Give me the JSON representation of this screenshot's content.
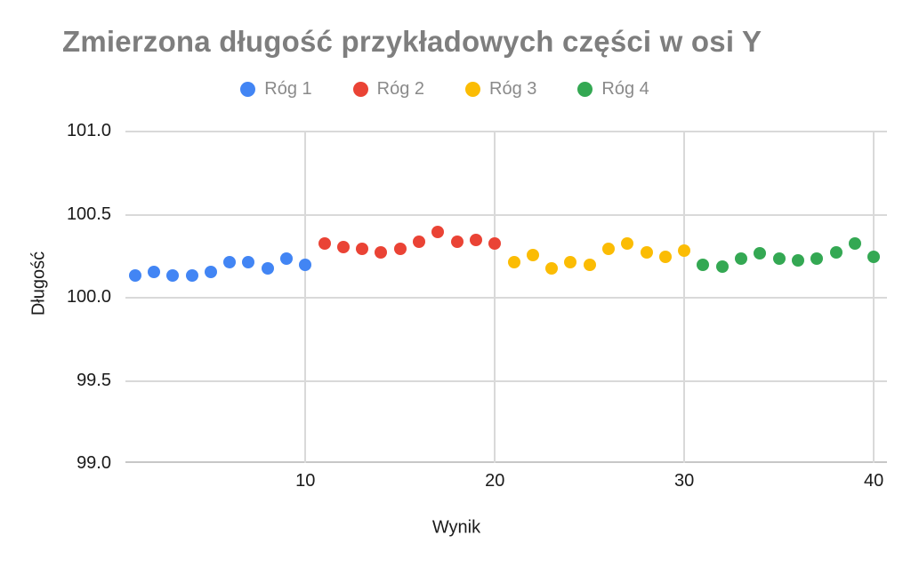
{
  "colors": {
    "background": "#ffffff",
    "title_text": "#7e7e7e",
    "legend_text": "#8a8a8a",
    "axis_text": "#1a1a1a",
    "gridline": "#d9d9d9",
    "baseline": "#c7c7c7"
  },
  "chart_data": {
    "type": "scatter",
    "title": "Zmierzona długość przykładowych części w osi Y",
    "xlabel": "Wynik",
    "ylabel": "Długość",
    "xlim": [
      0.5,
      40.7
    ],
    "ylim": [
      99.0,
      101.0
    ],
    "x_ticks": [
      10,
      20,
      30,
      40
    ],
    "y_ticks": [
      101.0,
      100.5,
      100.0,
      99.5,
      99.0
    ],
    "y_tick_labels": [
      "101.0",
      "100.5",
      "100.0",
      "99.5",
      "99.0"
    ],
    "grid": true,
    "legend_position": "top",
    "marker_diameter_px": 14,
    "series": [
      {
        "name": "Róg 1",
        "color": "#4285F4",
        "x": [
          1,
          2,
          3,
          4,
          5,
          6,
          7,
          8,
          9,
          10
        ],
        "y": [
          100.13,
          100.15,
          100.13,
          100.13,
          100.15,
          100.21,
          100.21,
          100.17,
          100.23,
          100.19
        ]
      },
      {
        "name": "Róg 2",
        "color": "#EA4335",
        "x": [
          11,
          12,
          13,
          14,
          15,
          16,
          17,
          18,
          19,
          20
        ],
        "y": [
          100.32,
          100.3,
          100.29,
          100.27,
          100.29,
          100.33,
          100.39,
          100.33,
          100.34,
          100.32
        ]
      },
      {
        "name": "Róg 3",
        "color": "#FBBC04",
        "x": [
          21,
          22,
          23,
          24,
          25,
          26,
          27,
          28,
          29,
          30
        ],
        "y": [
          100.21,
          100.25,
          100.17,
          100.21,
          100.19,
          100.29,
          100.32,
          100.27,
          100.24,
          100.28
        ]
      },
      {
        "name": "Róg 4",
        "color": "#34A853",
        "x": [
          31,
          32,
          33,
          34,
          35,
          36,
          37,
          38,
          39,
          40
        ],
        "y": [
          100.19,
          100.18,
          100.23,
          100.26,
          100.23,
          100.22,
          100.23,
          100.27,
          100.32,
          100.24
        ]
      }
    ]
  }
}
